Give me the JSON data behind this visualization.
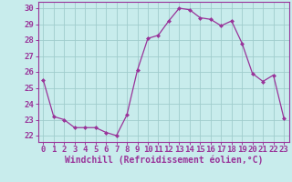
{
  "hours": [
    0,
    1,
    2,
    3,
    4,
    5,
    6,
    7,
    8,
    9,
    10,
    11,
    12,
    13,
    14,
    15,
    16,
    17,
    18,
    19,
    20,
    21,
    22,
    23
  ],
  "values": [
    25.5,
    23.2,
    23.0,
    22.5,
    22.5,
    22.5,
    22.2,
    22.0,
    23.3,
    26.1,
    28.1,
    28.3,
    29.2,
    30.0,
    29.9,
    29.4,
    29.3,
    28.9,
    29.2,
    27.8,
    25.9,
    25.4,
    25.8,
    23.1
  ],
  "line_color": "#993399",
  "marker": "D",
  "marker_size": 2,
  "bg_color": "#c8ecec",
  "grid_color": "#a0cccc",
  "ylabel_ticks": [
    22,
    23,
    24,
    25,
    26,
    27,
    28,
    29,
    30
  ],
  "ylim": [
    21.6,
    30.4
  ],
  "xlim": [
    -0.5,
    23.5
  ],
  "xlabel": "Windchill (Refroidissement éolien,°C)",
  "xlabel_fontsize": 7,
  "tick_fontsize": 6.5,
  "title": ""
}
